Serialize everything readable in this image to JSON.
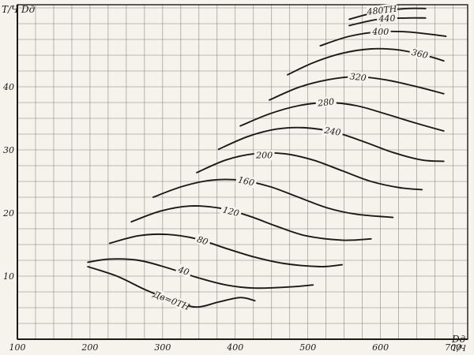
{
  "page": {
    "background": "#f5f3ec",
    "ink": "#1c1a15",
    "grid_color": "#6f6c63"
  },
  "chart_data": {
    "type": "line",
    "title": "",
    "x_axis": {
      "symbol": "Dд",
      "unit": "Т/Ч",
      "ticks": [
        100,
        200,
        300,
        400,
        500,
        600,
        700
      ],
      "range": [
        100,
        720
      ],
      "grid_step": 25
    },
    "y_axis": {
      "symbol": "Dд",
      "unit": "Т/Ч",
      "ticks": [
        10,
        20,
        30,
        40
      ],
      "range": [
        0,
        53
      ],
      "grid_step": 2.5
    },
    "series": [
      {
        "label": "Дв=0ТН",
        "label_at": [
          312,
          6.1
        ],
        "points": [
          [
            197,
            11.5
          ],
          [
            237,
            10.0
          ],
          [
            277,
            7.8
          ],
          [
            317,
            6.0
          ],
          [
            347,
            5.1
          ],
          [
            377,
            5.9
          ],
          [
            407,
            6.6
          ],
          [
            427,
            6.1
          ]
        ]
      },
      {
        "label": "40",
        "label_at": [
          329,
          10.8
        ],
        "points": [
          [
            197,
            12.2
          ],
          [
            227,
            12.7
          ],
          [
            267,
            12.5
          ],
          [
            307,
            11.3
          ],
          [
            347,
            9.8
          ],
          [
            387,
            8.6
          ],
          [
            427,
            8.1
          ],
          [
            477,
            8.3
          ],
          [
            507,
            8.6
          ]
        ]
      },
      {
        "label": "80",
        "label_at": [
          355,
          15.6
        ],
        "points": [
          [
            227,
            15.2
          ],
          [
            267,
            16.4
          ],
          [
            307,
            16.6
          ],
          [
            347,
            15.9
          ],
          [
            387,
            14.4
          ],
          [
            427,
            13.0
          ],
          [
            467,
            12.0
          ],
          [
            517,
            11.5
          ],
          [
            547,
            11.8
          ]
        ]
      },
      {
        "label": "120",
        "label_at": [
          394,
          20.2
        ],
        "points": [
          [
            257,
            18.6
          ],
          [
            297,
            20.3
          ],
          [
            337,
            21.1
          ],
          [
            377,
            20.8
          ],
          [
            417,
            19.6
          ],
          [
            457,
            17.9
          ],
          [
            497,
            16.4
          ],
          [
            547,
            15.7
          ],
          [
            587,
            15.9
          ]
        ]
      },
      {
        "label": "160",
        "label_at": [
          415,
          25.0
        ],
        "points": [
          [
            287,
            22.5
          ],
          [
            327,
            24.2
          ],
          [
            367,
            25.2
          ],
          [
            407,
            25.2
          ],
          [
            447,
            24.2
          ],
          [
            487,
            22.5
          ],
          [
            527,
            20.8
          ],
          [
            567,
            19.8
          ],
          [
            617,
            19.3
          ]
        ]
      },
      {
        "label": "200",
        "label_at": [
          440,
          29.1
        ],
        "points": [
          [
            347,
            26.4
          ],
          [
            387,
            28.4
          ],
          [
            427,
            29.4
          ],
          [
            467,
            29.4
          ],
          [
            507,
            28.4
          ],
          [
            547,
            26.7
          ],
          [
            587,
            25.0
          ],
          [
            627,
            24.0
          ],
          [
            657,
            23.7
          ]
        ]
      },
      {
        "label": "240",
        "label_at": [
          534,
          32.9
        ],
        "points": [
          [
            377,
            30.1
          ],
          [
            417,
            32.1
          ],
          [
            457,
            33.3
          ],
          [
            497,
            33.5
          ],
          [
            537,
            32.8
          ],
          [
            577,
            31.3
          ],
          [
            617,
            29.6
          ],
          [
            657,
            28.4
          ],
          [
            687,
            28.2
          ]
        ]
      },
      {
        "label": "280",
        "label_at": [
          525,
          37.5
        ],
        "points": [
          [
            407,
            33.8
          ],
          [
            447,
            35.7
          ],
          [
            487,
            37.0
          ],
          [
            527,
            37.5
          ],
          [
            567,
            37.0
          ],
          [
            607,
            35.7
          ],
          [
            647,
            34.3
          ],
          [
            687,
            33.0
          ]
        ]
      },
      {
        "label": "320",
        "label_at": [
          569,
          41.5
        ],
        "points": [
          [
            447,
            37.9
          ],
          [
            487,
            39.9
          ],
          [
            527,
            41.1
          ],
          [
            567,
            41.6
          ],
          [
            607,
            41.1
          ],
          [
            647,
            40.1
          ],
          [
            687,
            38.9
          ]
        ]
      },
      {
        "label": "360",
        "label_at": [
          654,
          45.2
        ],
        "points": [
          [
            472,
            41.9
          ],
          [
            507,
            43.8
          ],
          [
            547,
            45.3
          ],
          [
            587,
            46.0
          ],
          [
            627,
            45.8
          ],
          [
            667,
            44.8
          ],
          [
            687,
            44.1
          ]
        ]
      },
      {
        "label": "400",
        "label_at": [
          600,
          48.7
        ],
        "points": [
          [
            517,
            46.5
          ],
          [
            557,
            48.0
          ],
          [
            597,
            48.7
          ],
          [
            637,
            48.7
          ],
          [
            677,
            48.2
          ],
          [
            690,
            48.0
          ]
        ]
      },
      {
        "label": "440",
        "label_at": [
          609,
          50.8
        ],
        "points": [
          [
            557,
            49.7
          ],
          [
            597,
            50.7
          ],
          [
            637,
            50.9
          ],
          [
            662,
            50.9
          ]
        ]
      },
      {
        "label": "480ТН",
        "label_at": [
          602,
          52.1
        ],
        "points": [
          [
            557,
            50.7
          ],
          [
            597,
            51.9
          ],
          [
            637,
            52.4
          ],
          [
            662,
            52.4
          ]
        ]
      }
    ]
  }
}
